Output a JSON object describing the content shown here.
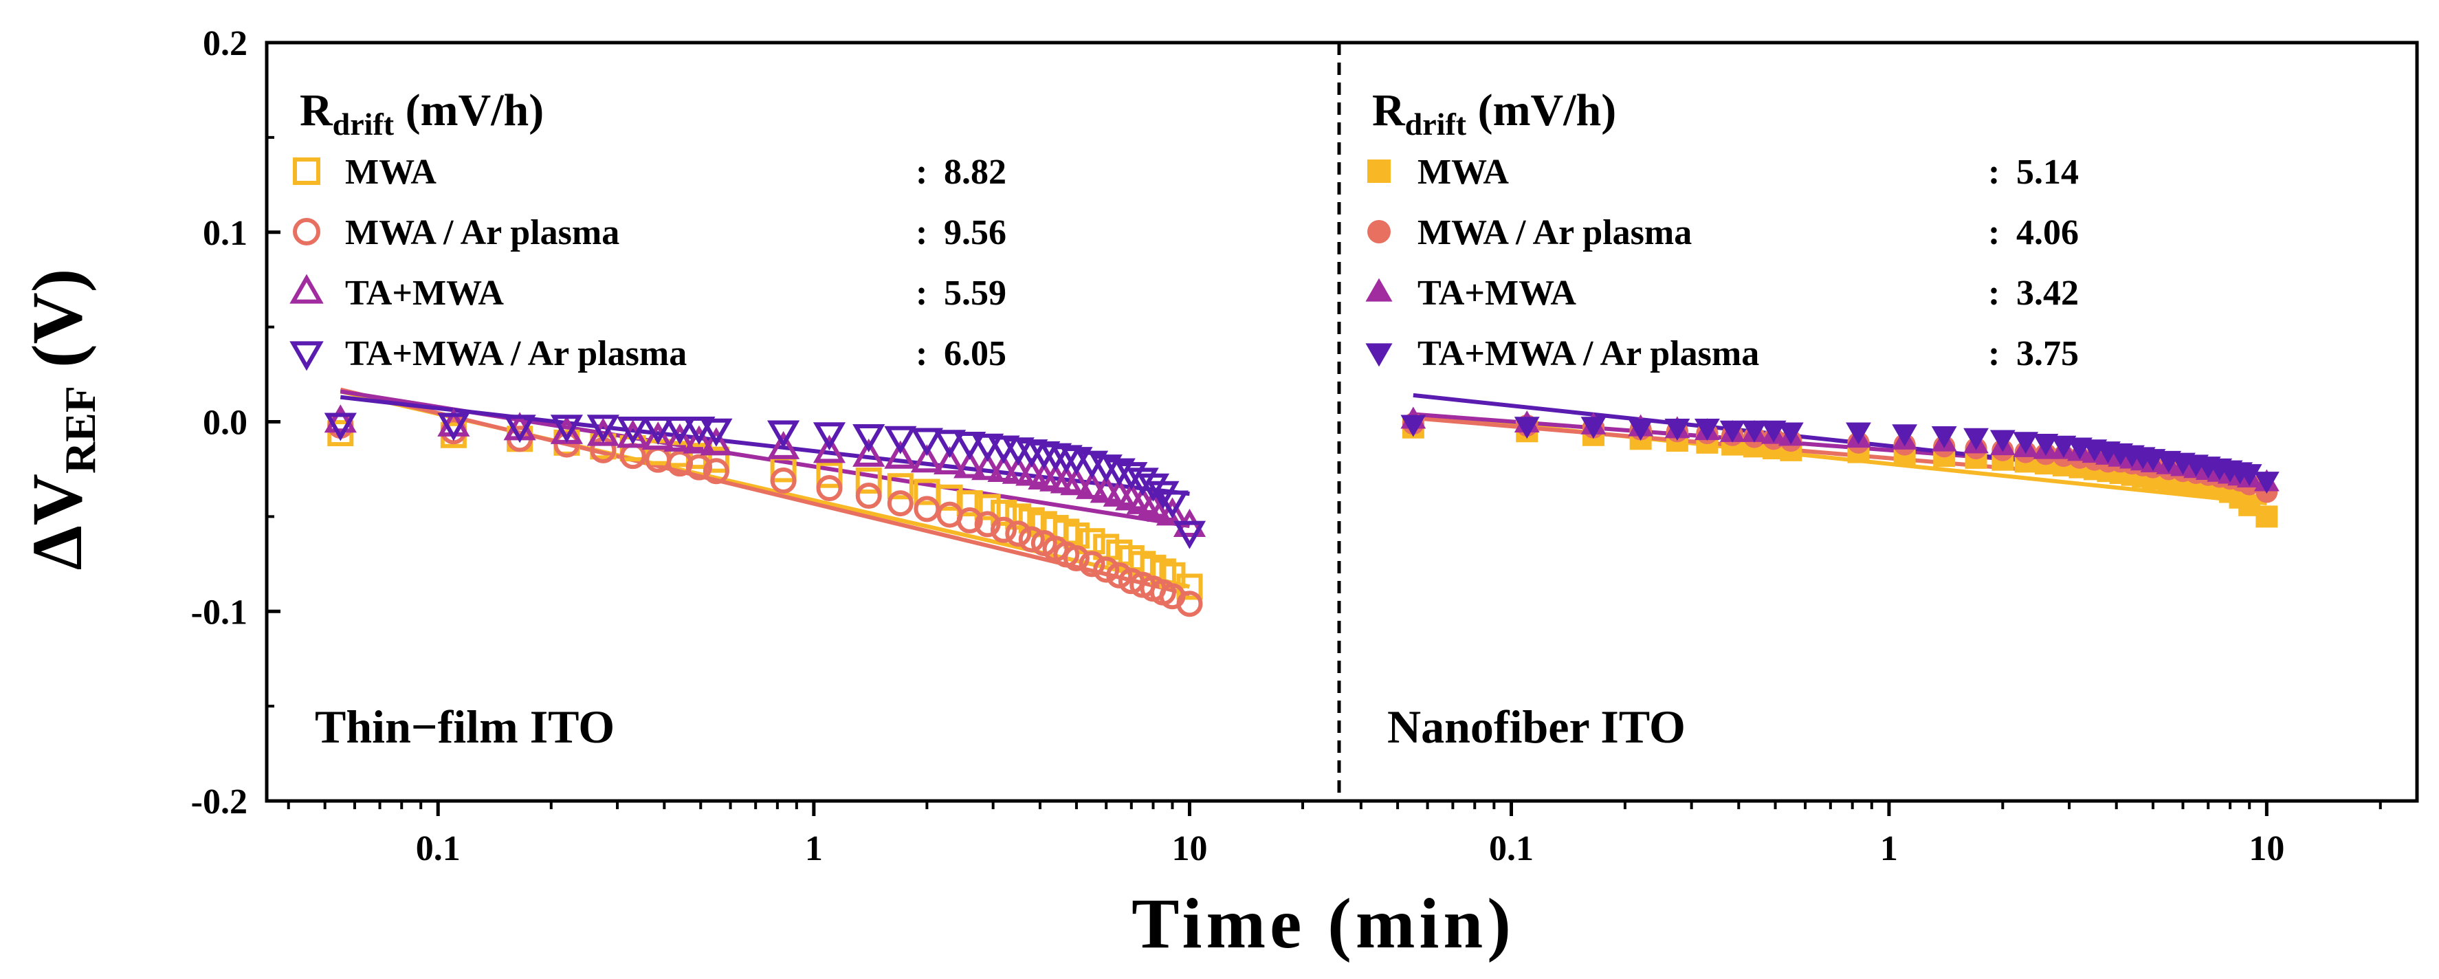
{
  "chart_data": {
    "type": "scatter",
    "xlabel": "Time (min)",
    "ylabel_prefix": "ΔV",
    "ylabel_sub": "REF",
    "ylabel_unit": " (V)",
    "x_scale": "log",
    "xlim": [
      0.035,
      25
    ],
    "ylim": [
      -0.2,
      0.2
    ],
    "x_ticks": [
      0.1,
      1,
      10
    ],
    "x_tick_labels": [
      "0.1",
      "1",
      "10"
    ],
    "y_ticks": [
      -0.2,
      -0.1,
      0.0,
      0.1,
      0.2
    ],
    "y_tick_labels": [
      "-0.2",
      "-0.1",
      "0.0",
      "0.1",
      "0.2"
    ],
    "legend_title_main": "R",
    "legend_title_sub": "drift",
    "legend_title_unit": " (mV/h)",
    "x_samples": [
      0.055,
      0.11,
      0.165,
      0.22,
      0.275,
      0.33,
      0.385,
      0.44,
      0.495,
      0.55,
      0.83,
      1.1,
      1.4,
      1.7,
      2.0,
      2.3,
      2.6,
      2.9,
      3.2,
      3.5,
      3.8,
      4.1,
      4.4,
      4.7,
      5.0,
      5.5,
      6.0,
      6.5,
      7.0,
      7.5,
      8.0,
      8.5,
      9.0,
      10.0
    ],
    "panels": [
      {
        "label": "Thin−film ITO",
        "marker_fill": "open",
        "series": [
          {
            "name": "MWA",
            "marker": "square",
            "color": "#F8B825",
            "drift": "8.82",
            "values": [
              -0.006,
              -0.007,
              -0.009,
              -0.011,
              -0.013,
              -0.014,
              -0.016,
              -0.017,
              -0.018,
              -0.02,
              -0.025,
              -0.028,
              -0.031,
              -0.034,
              -0.037,
              -0.04,
              -0.043,
              -0.045,
              -0.048,
              -0.05,
              -0.052,
              -0.054,
              -0.056,
              -0.058,
              -0.06,
              -0.063,
              -0.066,
              -0.069,
              -0.072,
              -0.075,
              -0.077,
              -0.079,
              -0.081,
              -0.087
            ],
            "fit": [
              0.016,
              -0.087
            ]
          },
          {
            "name": "MWA / Ar plasma",
            "marker": "circle",
            "color": "#E87060",
            "drift": "9.56",
            "values": [
              -0.002,
              -0.005,
              -0.009,
              -0.012,
              -0.015,
              -0.018,
              -0.02,
              -0.022,
              -0.024,
              -0.026,
              -0.031,
              -0.035,
              -0.039,
              -0.043,
              -0.046,
              -0.049,
              -0.052,
              -0.054,
              -0.057,
              -0.059,
              -0.062,
              -0.064,
              -0.067,
              -0.07,
              -0.072,
              -0.075,
              -0.078,
              -0.081,
              -0.084,
              -0.086,
              -0.088,
              -0.09,
              -0.092,
              -0.096
            ],
            "fit": [
              0.017,
              -0.091
            ]
          },
          {
            "name": "TA+MWA",
            "marker": "triangle-up",
            "color": "#A02CA0",
            "drift": "5.59",
            "values": [
              0.0,
              -0.002,
              -0.004,
              -0.006,
              -0.007,
              -0.008,
              -0.009,
              -0.01,
              -0.011,
              -0.012,
              -0.014,
              -0.016,
              -0.018,
              -0.019,
              -0.021,
              -0.022,
              -0.024,
              -0.025,
              -0.026,
              -0.027,
              -0.028,
              -0.03,
              -0.031,
              -0.032,
              -0.033,
              -0.035,
              -0.037,
              -0.039,
              -0.041,
              -0.043,
              -0.045,
              -0.047,
              -0.049,
              -0.055
            ],
            "fit": [
              0.016,
              -0.055
            ]
          },
          {
            "name": "TA+MWA / Ar plasma",
            "marker": "triangle-down",
            "color": "#5A1CB0",
            "drift": "6.05",
            "values": [
              -0.001,
              -0.001,
              -0.002,
              -0.002,
              -0.002,
              -0.003,
              -0.003,
              -0.003,
              -0.003,
              -0.004,
              -0.005,
              -0.006,
              -0.007,
              -0.008,
              -0.009,
              -0.01,
              -0.011,
              -0.012,
              -0.013,
              -0.014,
              -0.015,
              -0.016,
              -0.017,
              -0.018,
              -0.019,
              -0.021,
              -0.023,
              -0.025,
              -0.027,
              -0.03,
              -0.033,
              -0.037,
              -0.042,
              -0.058
            ],
            "fit": [
              0.013,
              -0.038
            ]
          }
        ]
      },
      {
        "label": "Nanofiber ITO",
        "marker_fill": "filled",
        "series": [
          {
            "name": "MWA",
            "marker": "square",
            "color": "#F8B825",
            "drift": "5.14",
            "values": [
              -0.003,
              -0.005,
              -0.007,
              -0.009,
              -0.01,
              -0.011,
              -0.012,
              -0.013,
              -0.014,
              -0.015,
              -0.016,
              -0.017,
              -0.018,
              -0.019,
              -0.02,
              -0.021,
              -0.022,
              -0.023,
              -0.024,
              -0.025,
              -0.026,
              -0.027,
              -0.028,
              -0.029,
              -0.03,
              -0.031,
              -0.032,
              -0.033,
              -0.034,
              -0.035,
              -0.037,
              -0.04,
              -0.044,
              -0.05
            ],
            "fit": [
              0.004,
              -0.043
            ]
          },
          {
            "name": "MWA / Ar plasma",
            "marker": "circle",
            "color": "#E87060",
            "drift": "4.06",
            "values": [
              -0.001,
              -0.002,
              -0.003,
              -0.004,
              -0.005,
              -0.006,
              -0.007,
              -0.008,
              -0.009,
              -0.01,
              -0.011,
              -0.012,
              -0.013,
              -0.014,
              -0.015,
              -0.016,
              -0.017,
              -0.018,
              -0.019,
              -0.02,
              -0.021,
              -0.021,
              -0.022,
              -0.023,
              -0.024,
              -0.025,
              -0.026,
              -0.027,
              -0.028,
              -0.029,
              -0.03,
              -0.031,
              -0.033,
              -0.037
            ],
            "fit": [
              0.002,
              -0.036
            ]
          },
          {
            "name": "TA+MWA",
            "marker": "triangle-up",
            "color": "#A02CA0",
            "drift": "3.42",
            "values": [
              0.001,
              -0.001,
              -0.002,
              -0.003,
              -0.004,
              -0.005,
              -0.006,
              -0.006,
              -0.007,
              -0.008,
              -0.009,
              -0.01,
              -0.011,
              -0.012,
              -0.013,
              -0.014,
              -0.015,
              -0.015,
              -0.016,
              -0.017,
              -0.018,
              -0.019,
              -0.02,
              -0.021,
              -0.022,
              -0.023,
              -0.024,
              -0.025,
              -0.026,
              -0.027,
              -0.028,
              -0.029,
              -0.03,
              -0.032
            ],
            "fit": [
              0.004,
              -0.03
            ]
          },
          {
            "name": "TA+MWA / Ar plasma",
            "marker": "triangle-down",
            "color": "#5A1CB0",
            "drift": "3.75",
            "values": [
              -0.001,
              -0.002,
              -0.002,
              -0.003,
              -0.003,
              -0.003,
              -0.004,
              -0.004,
              -0.004,
              -0.005,
              -0.005,
              -0.006,
              -0.007,
              -0.008,
              -0.009,
              -0.01,
              -0.011,
              -0.012,
              -0.013,
              -0.014,
              -0.015,
              -0.016,
              -0.017,
              -0.018,
              -0.019,
              -0.02,
              -0.021,
              -0.022,
              -0.023,
              -0.024,
              -0.025,
              -0.026,
              -0.027,
              -0.031
            ],
            "fit": [
              0.014,
              -0.034
            ]
          }
        ]
      }
    ]
  }
}
